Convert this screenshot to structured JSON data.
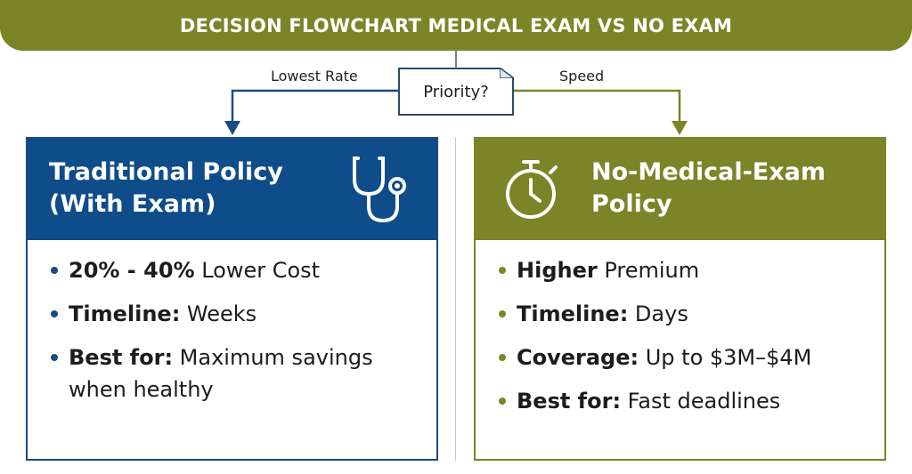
{
  "banner": {
    "title": "DECISION FLOWCHART MEDICAL EXAM VS NO EXAM"
  },
  "decision": {
    "question": "Priority?",
    "left_branch": "Lowest Rate",
    "right_branch": "Speed"
  },
  "colors": {
    "navy": "#0f4c8a",
    "olive": "#7b8427"
  },
  "left_card": {
    "title": "Traditional Policy\n(With Exam)",
    "icon": "stethoscope-icon",
    "bullets": [
      {
        "bold": "20% - 40%",
        "text": " Lower Cost"
      },
      {
        "bold": "Timeline:",
        "text": " Weeks"
      },
      {
        "bold": "Best for:",
        "text": " Maximum savings when healthy"
      }
    ]
  },
  "right_card": {
    "title": "No-Medical-Exam\nPolicy",
    "icon": "stopwatch-icon",
    "bullets": [
      {
        "bold": "Higher",
        "text": " Premium"
      },
      {
        "bold": "Timeline:",
        "text": " Days"
      },
      {
        "bold": "Coverage:",
        "text": " Up to $3M–$4M"
      },
      {
        "bold": "Best for:",
        "text": " Fast deadlines"
      }
    ]
  }
}
